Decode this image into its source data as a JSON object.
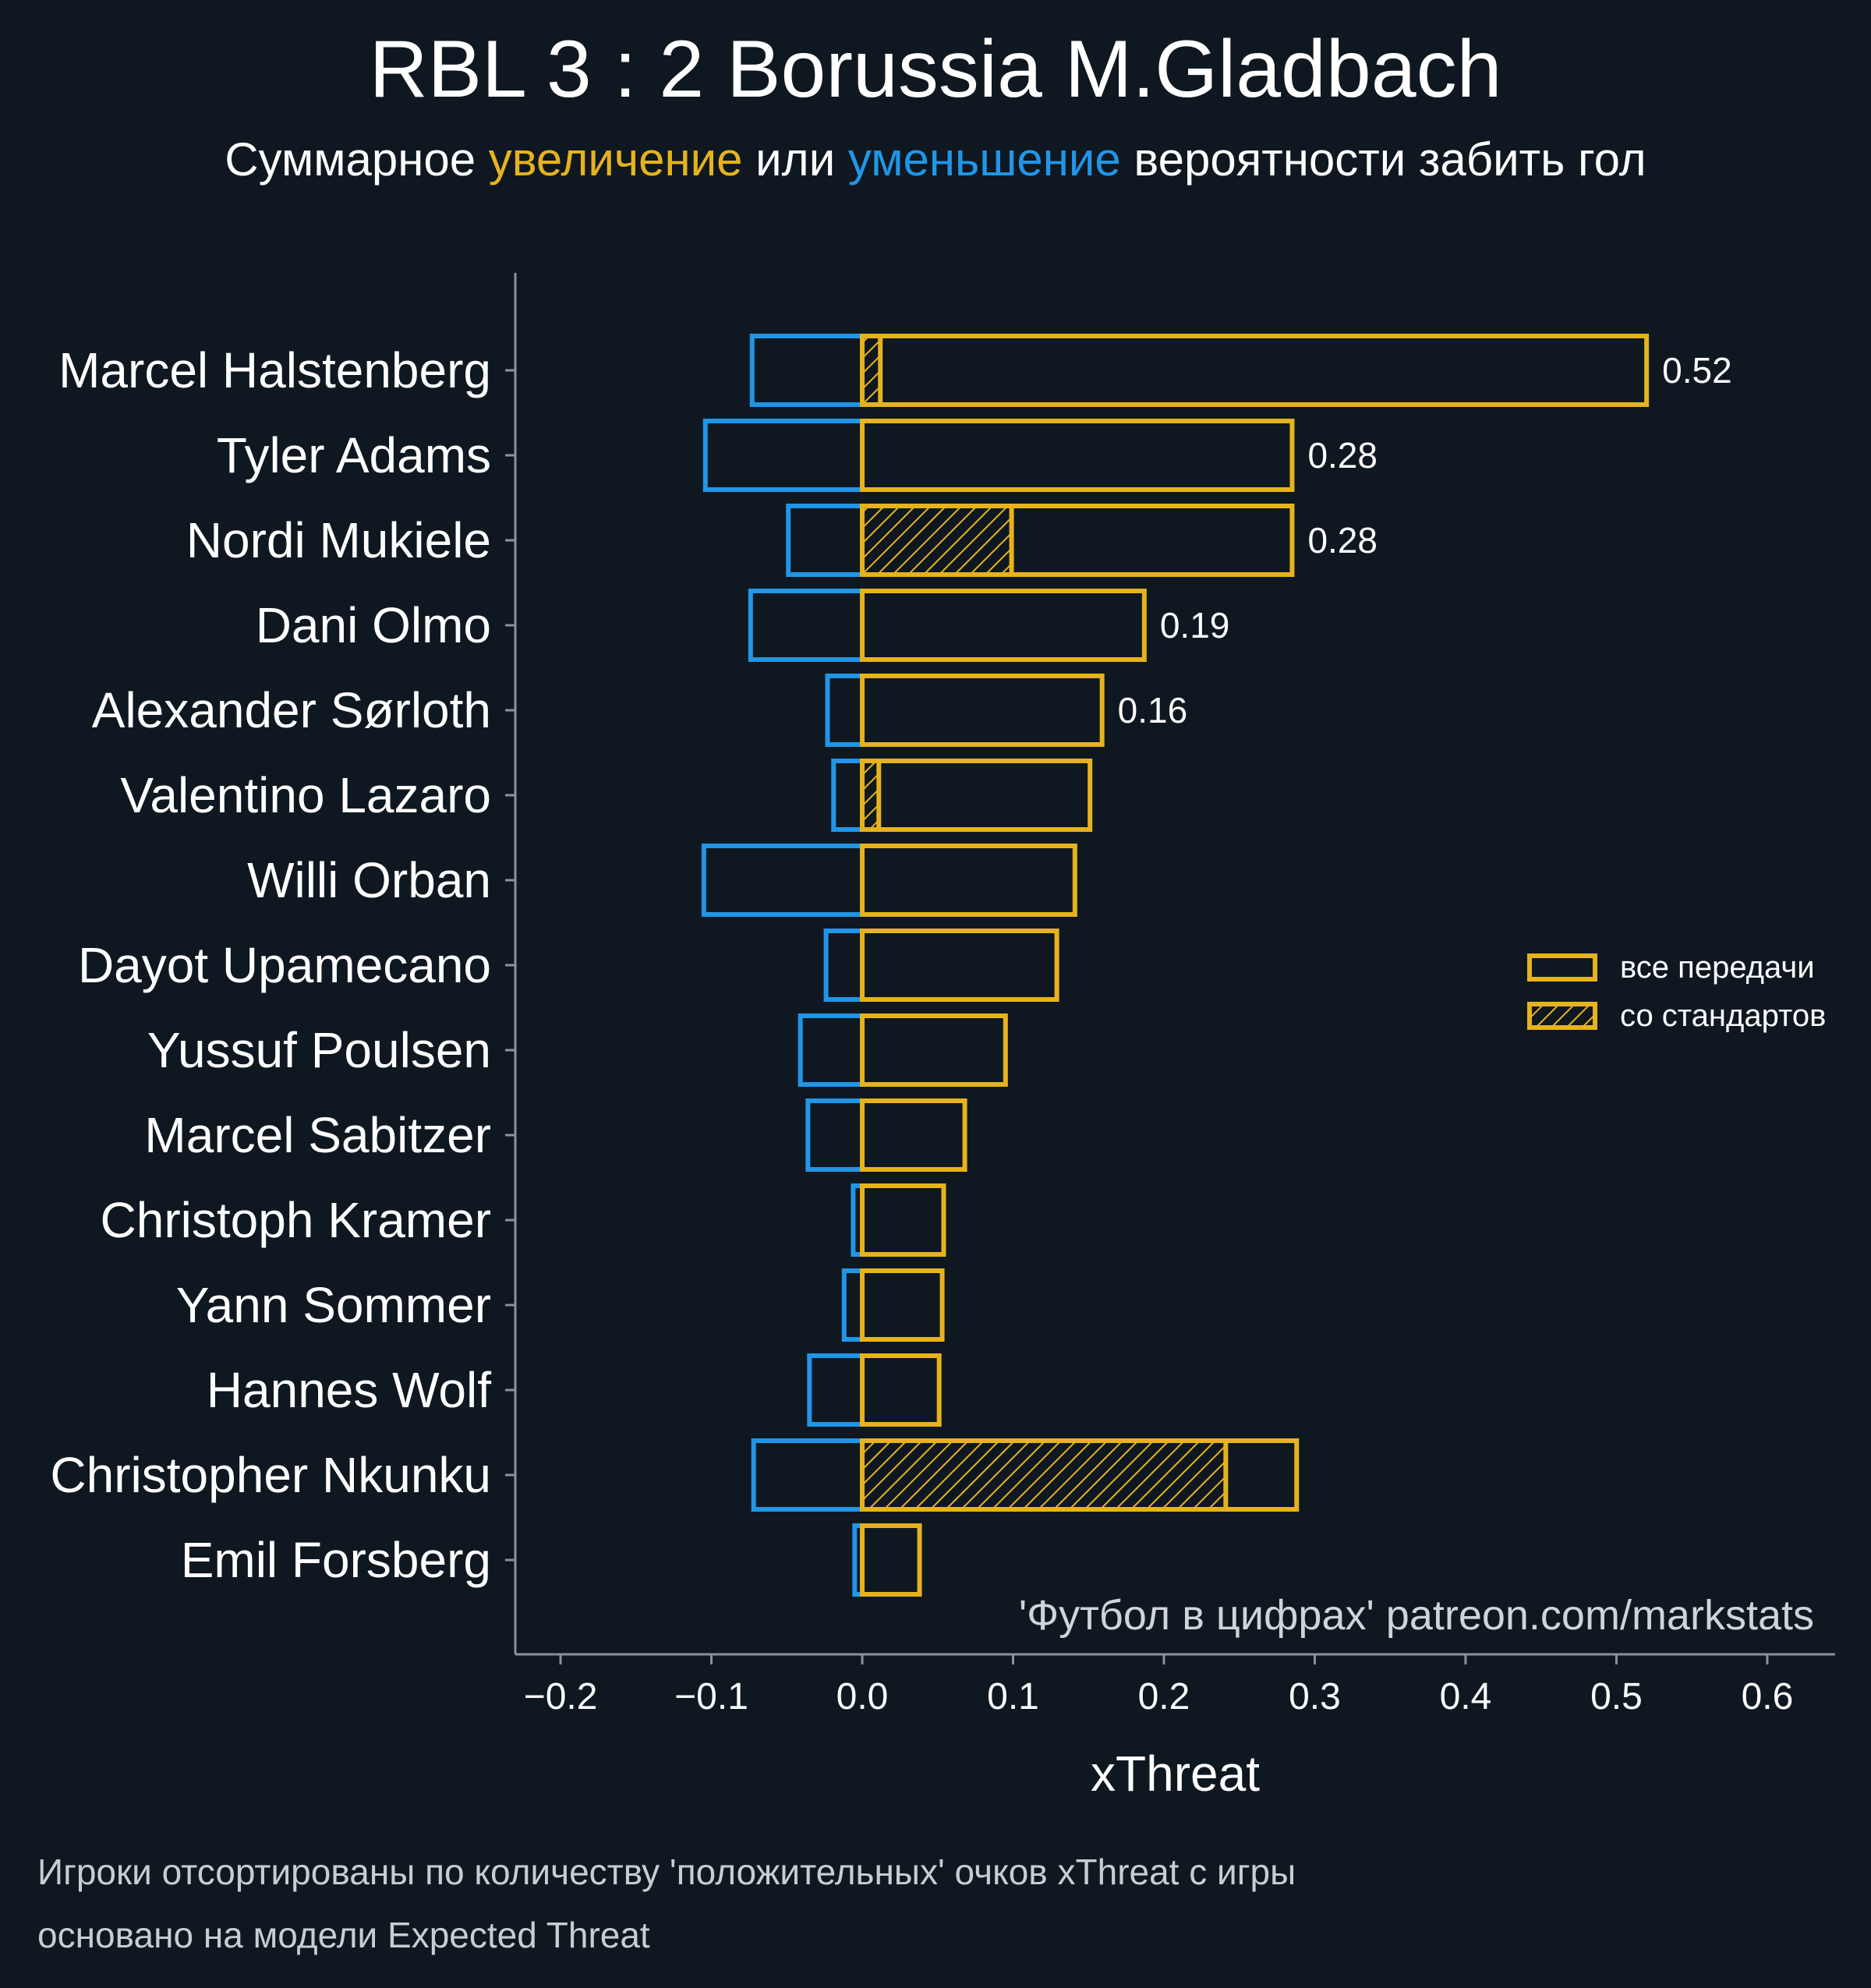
{
  "title": "RBL 3 : 2 Borussia M.Gladbach",
  "subtitle": {
    "prefix": "Суммарное ",
    "up_word": "увеличение",
    "middle": " или ",
    "down_word": "уменьшение",
    "suffix": " вероятности забить гол"
  },
  "footnotes": {
    "line1": "Игроки отсортированы по количеству 'положительных' очков xThreat с игры",
    "line2": "основано на модели Expected Threat"
  },
  "colors": {
    "background": "#0f1820",
    "positive": "#e6b31e",
    "negative": "#2196e8",
    "axis": "#8a939b",
    "text": "#ffffff"
  },
  "chart_data": {
    "type": "bar",
    "orientation": "horizontal",
    "xlabel": "xThreat",
    "xlim": [
      -0.23,
      0.645
    ],
    "xticks": [
      -0.2,
      -0.1,
      0.0,
      0.1,
      0.2,
      0.3,
      0.4,
      0.5,
      0.6
    ],
    "xtick_labels": [
      "−0.2",
      "−0.1",
      "0.0",
      "0.1",
      "0.2",
      "0.3",
      "0.4",
      "0.5",
      "0.6"
    ],
    "watermark": "'Футбол в цифрах' patreon.com/markstats",
    "legend": {
      "position": "right",
      "entries": [
        "все передачи",
        "со стандартов"
      ]
    },
    "players": [
      {
        "name": "Marcel Halstenberg",
        "positive": 0.52,
        "negative": -0.073,
        "set_piece": 0.012,
        "label": "0.52"
      },
      {
        "name": "Tyler Adams",
        "positive": 0.285,
        "negative": -0.104,
        "set_piece": 0.0,
        "label": "0.28"
      },
      {
        "name": "Nordi Mukiele",
        "positive": 0.285,
        "negative": -0.049,
        "set_piece": 0.099,
        "label": "0.28"
      },
      {
        "name": "Dani Olmo",
        "positive": 0.187,
        "negative": -0.074,
        "set_piece": 0.0,
        "label": "0.19"
      },
      {
        "name": "Alexander Sørloth",
        "positive": 0.159,
        "negative": -0.023,
        "set_piece": 0.0,
        "label": "0.16"
      },
      {
        "name": "Valentino Lazaro",
        "positive": 0.151,
        "negative": -0.019,
        "set_piece": 0.011,
        "label": ""
      },
      {
        "name": "Willi Orban",
        "positive": 0.141,
        "negative": -0.105,
        "set_piece": 0.0,
        "label": ""
      },
      {
        "name": "Dayot Upamecano",
        "positive": 0.129,
        "negative": -0.024,
        "set_piece": 0.0,
        "label": ""
      },
      {
        "name": "Yussuf Poulsen",
        "positive": 0.095,
        "negative": -0.041,
        "set_piece": 0.0,
        "label": ""
      },
      {
        "name": "Marcel Sabitzer",
        "positive": 0.068,
        "negative": -0.036,
        "set_piece": 0.0,
        "label": ""
      },
      {
        "name": "Christoph Kramer",
        "positive": 0.054,
        "negative": -0.006,
        "set_piece": 0.0,
        "label": ""
      },
      {
        "name": "Yann Sommer",
        "positive": 0.053,
        "negative": -0.012,
        "set_piece": 0.0,
        "label": ""
      },
      {
        "name": "Hannes Wolf",
        "positive": 0.051,
        "negative": -0.035,
        "set_piece": 0.0,
        "label": ""
      },
      {
        "name": "Christopher Nkunku",
        "positive": 0.288,
        "negative": -0.072,
        "set_piece": 0.241,
        "label": ""
      },
      {
        "name": "Emil Forsberg",
        "positive": 0.038,
        "negative": -0.005,
        "set_piece": 0.0,
        "label": ""
      }
    ]
  }
}
